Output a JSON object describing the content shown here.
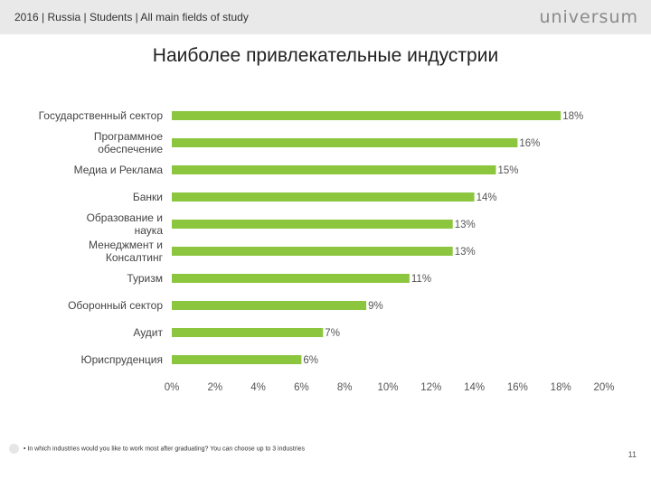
{
  "header": {
    "breadcrumb": "2016 | Russia | Students | All main fields of study",
    "logo_text": "universum"
  },
  "footer": {
    "note": "• In which industries would you like to work most after graduating? You can choose up to 3 industries",
    "page_number": "11"
  },
  "colors": {
    "bar": "#8cc63f",
    "header_bg": "#e9e9e9"
  },
  "chart_data": {
    "type": "bar",
    "orientation": "horizontal",
    "title": "Наиболее привлекательные индустрии",
    "categories": [
      "Государственный сектор",
      "Программное обеспечение",
      "Медиа и Реклама",
      "Банки",
      "Образование и наука",
      "Менеджмент и Консалтинг",
      "Туризм",
      "Оборонный сектор",
      "Аудит",
      "Юриспруденция"
    ],
    "values": [
      18,
      16,
      15,
      14,
      13,
      13,
      11,
      9,
      7,
      6
    ],
    "value_labels": [
      "18%",
      "16%",
      "15%",
      "14%",
      "13%",
      "13%",
      "11%",
      "9%",
      "7%",
      "6%"
    ],
    "xlim": [
      0,
      20
    ],
    "x_ticks": [
      "0%",
      "2%",
      "4%",
      "6%",
      "8%",
      "10%",
      "12%",
      "14%",
      "16%",
      "18%",
      "20%"
    ],
    "grid": false,
    "unit": "%"
  }
}
